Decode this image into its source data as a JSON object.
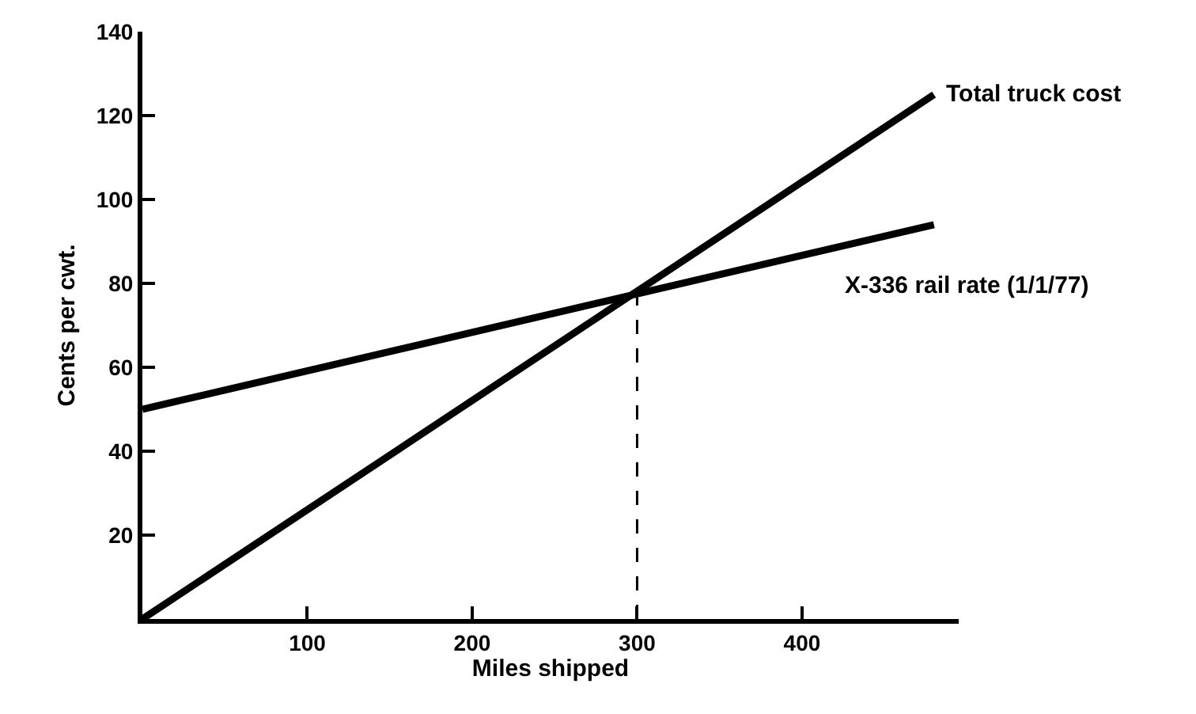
{
  "chart_data": {
    "type": "line",
    "xlabel": "Miles shipped",
    "ylabel": "Cents per cwt.",
    "xlim": [
      0,
      495
    ],
    "ylim": [
      0,
      140
    ],
    "xticks": [
      100,
      200,
      300,
      400
    ],
    "yticks": [
      20,
      40,
      60,
      80,
      100,
      120,
      140
    ],
    "marker": "none",
    "series": [
      {
        "name": "Total truck cost",
        "color": "#000000",
        "x": [
          0,
          480
        ],
        "values": [
          0,
          125
        ]
      },
      {
        "name": "X-336 rail rate (1/1/77)",
        "color": "#000000",
        "x": [
          0,
          480
        ],
        "values": [
          50,
          94
        ]
      },
      {
        "color": "#000000",
        "x": [
          300,
          300
        ],
        "values": [
          0,
          77
        ],
        "line_style": "dashed"
      }
    ]
  }
}
